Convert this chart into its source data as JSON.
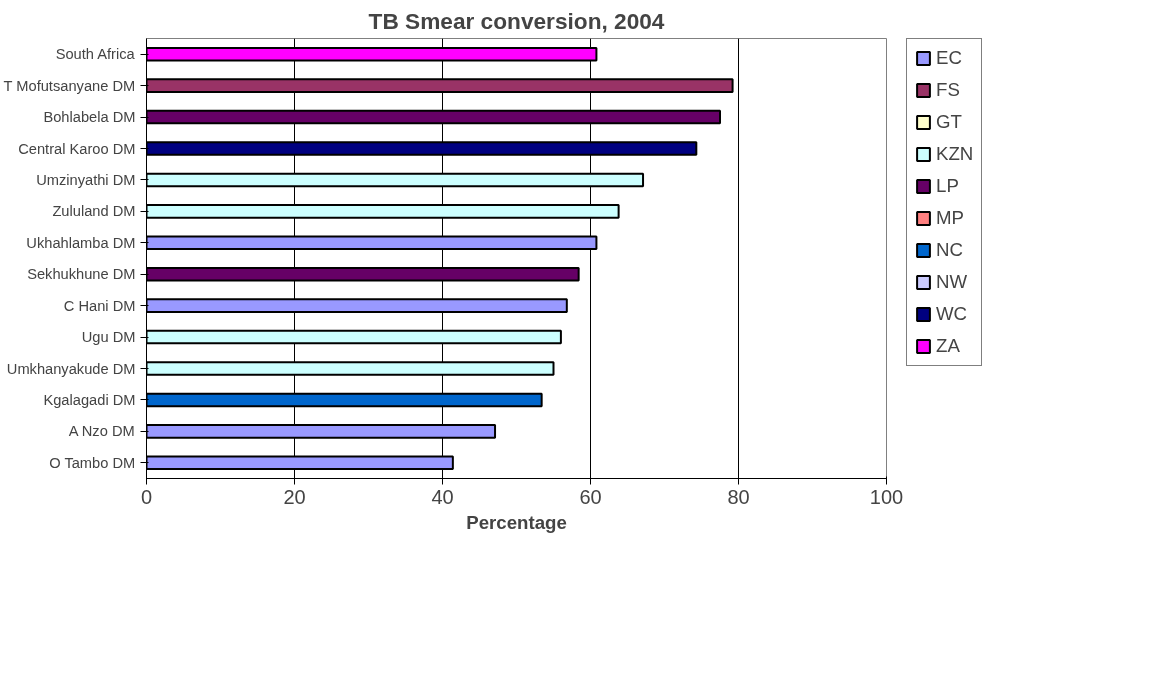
{
  "chart_data": {
    "type": "bar",
    "orientation": "horizontal",
    "title": "TB Smear conversion, 2004",
    "xlabel": "Percentage",
    "categories": [
      "South Africa",
      "T Mofutsanyane DM",
      "Bohlabela DM",
      "Central Karoo DM",
      "Umzinyathi DM",
      "Zululand DM",
      "Ukhahlamba DM",
      "Sekhukhune DM",
      "C Hani DM",
      "Ugu DM",
      "Umkhanyakude DM",
      "Kgalagadi DM",
      "A Nzo DM",
      "O Tambo DM"
    ],
    "series": [
      {
        "name": "EC",
        "color": "#9999ff",
        "values": [
          null,
          null,
          null,
          null,
          null,
          null,
          60.8,
          null,
          56.8,
          null,
          null,
          null,
          47.1,
          41.4
        ]
      },
      {
        "name": "FS",
        "color": "#993366",
        "values": [
          null,
          79.2,
          null,
          null,
          null,
          null,
          null,
          null,
          null,
          null,
          null,
          null,
          null,
          null
        ]
      },
      {
        "name": "GT",
        "color": "#ffffcc",
        "values": [
          null,
          null,
          null,
          null,
          null,
          null,
          null,
          null,
          null,
          null,
          null,
          null,
          null,
          null
        ]
      },
      {
        "name": "KZN",
        "color": "#ccffff",
        "values": [
          null,
          null,
          null,
          null,
          67.1,
          63.8,
          null,
          null,
          null,
          56.0,
          55.0,
          null,
          null,
          null
        ]
      },
      {
        "name": "LP",
        "color": "#660066",
        "values": [
          null,
          null,
          77.5,
          null,
          null,
          null,
          null,
          58.4,
          null,
          null,
          null,
          null,
          null,
          null
        ]
      },
      {
        "name": "MP",
        "color": "#ff8080",
        "values": [
          null,
          null,
          null,
          null,
          null,
          null,
          null,
          null,
          null,
          null,
          null,
          null,
          null,
          null
        ]
      },
      {
        "name": "NC",
        "color": "#0066cc",
        "values": [
          null,
          null,
          null,
          null,
          null,
          null,
          null,
          null,
          null,
          null,
          null,
          53.4,
          null,
          null
        ]
      },
      {
        "name": "NW",
        "color": "#ccccff",
        "values": [
          null,
          null,
          null,
          null,
          null,
          null,
          null,
          null,
          null,
          null,
          null,
          null,
          null,
          null
        ]
      },
      {
        "name": "WC",
        "color": "#000080",
        "values": [
          null,
          null,
          null,
          74.3,
          null,
          null,
          null,
          null,
          null,
          null,
          null,
          null,
          null,
          null
        ]
      },
      {
        "name": "ZA",
        "color": "#ff00ff",
        "values": [
          60.8,
          null,
          null,
          null,
          null,
          null,
          null,
          null,
          null,
          null,
          null,
          null,
          null,
          null
        ]
      }
    ],
    "xlim": [
      0,
      100
    ],
    "xticks": [
      0,
      20,
      40,
      60,
      80,
      100
    ],
    "grid": "x",
    "legend": "right"
  }
}
